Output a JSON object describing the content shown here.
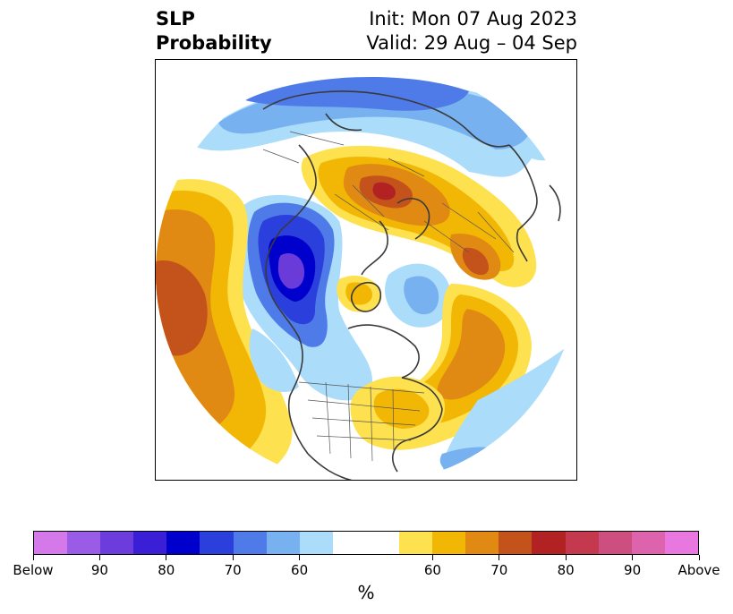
{
  "title": {
    "variable_line1": "SLP",
    "variable_line2": "Probability",
    "init": "Init: Mon 07 Aug 2023",
    "valid": "Valid: 29 Aug – 04 Sep"
  },
  "map": {
    "projection": "north-polar-stereographic",
    "features": [
      {
        "name": "below-normal-pacific-arctic",
        "category": "below",
        "level": 60,
        "color": "#abdcfa"
      },
      {
        "name": "below-normal-alaska-siberia",
        "category": "below",
        "level": 70,
        "color": "#4e7be8"
      },
      {
        "name": "below-normal-western-canada",
        "category": "below",
        "level": 80,
        "color": "#2a3fdb"
      },
      {
        "name": "below-normal-western-canada-core",
        "category": "below",
        "level": 90,
        "color": "#6a3bd8"
      },
      {
        "name": "above-normal-europe-scandinavia",
        "category": "above",
        "level": 75,
        "color": "#c4521b"
      },
      {
        "name": "above-normal-north-atlantic",
        "category": "above",
        "level": 65,
        "color": "#e08a14"
      },
      {
        "name": "above-normal-north-pacific",
        "category": "above",
        "level": 70,
        "color": "#c4521b"
      },
      {
        "name": "above-normal-eastern-us",
        "category": "above",
        "level": 60,
        "color": "#fde14e"
      }
    ]
  },
  "colorbar": {
    "unit_label": "%",
    "segments": [
      {
        "color": "#d578ea"
      },
      {
        "color": "#9a5ce6"
      },
      {
        "color": "#6c3cdd"
      },
      {
        "color": "#3a1fd6"
      },
      {
        "color": "#0000cd"
      },
      {
        "color": "#2a3fdb"
      },
      {
        "color": "#4e7be8"
      },
      {
        "color": "#78b1f0"
      },
      {
        "color": "#abdcfa"
      },
      {
        "color": "#ffffff"
      },
      {
        "color": "#ffffff"
      },
      {
        "color": "#fde14e"
      },
      {
        "color": "#f2b705"
      },
      {
        "color": "#e08a14"
      },
      {
        "color": "#c4521b"
      },
      {
        "color": "#b22222"
      },
      {
        "color": "#c5394f"
      },
      {
        "color": "#cd4f80"
      },
      {
        "color": "#dd63ac"
      },
      {
        "color": "#e878e0"
      }
    ],
    "ticks": [
      {
        "label": "Below",
        "index": 0
      },
      {
        "label": "90",
        "index": 2
      },
      {
        "label": "80",
        "index": 4
      },
      {
        "label": "70",
        "index": 6
      },
      {
        "label": "60",
        "index": 8
      },
      {
        "label": "60",
        "index": 12
      },
      {
        "label": "70",
        "index": 14
      },
      {
        "label": "80",
        "index": 16
      },
      {
        "label": "90",
        "index": 18
      },
      {
        "label": "Above",
        "index": 20
      }
    ]
  }
}
